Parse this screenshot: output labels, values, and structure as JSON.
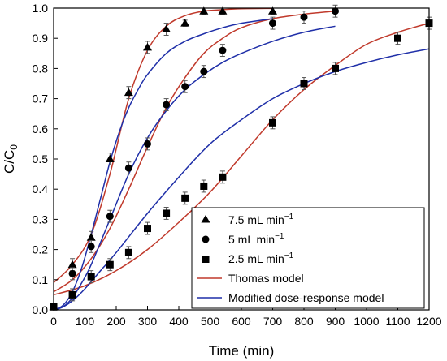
{
  "chart_data": {
    "type": "scatter",
    "title": "",
    "xlabel": "Time (min)",
    "ylabel": "C/C",
    "ylabel_subscript": "0",
    "xlim": [
      0,
      1200
    ],
    "ylim": [
      0,
      1.0
    ],
    "x_ticks": [
      0,
      100,
      200,
      300,
      400,
      500,
      600,
      700,
      800,
      900,
      1000,
      1100,
      1200
    ],
    "y_ticks": [
      0.0,
      0.1,
      0.2,
      0.3,
      0.4,
      0.5,
      0.6,
      0.7,
      0.8,
      0.9,
      1.0
    ],
    "x_tick_labels": [
      "0",
      "100",
      "200",
      "300",
      "400",
      "500",
      "600",
      "700",
      "800",
      "900",
      "1000",
      "1100",
      "1200"
    ],
    "y_tick_labels": [
      "0.0",
      "0.1",
      "0.2",
      "0.3",
      "0.4",
      "0.5",
      "0.6",
      "0.7",
      "0.8",
      "0.9",
      "1.0"
    ],
    "grid": false,
    "legend_position": "bottom-right",
    "series": [
      {
        "name": "7.5 mL min",
        "name_superscript": "−1",
        "marker": "triangle",
        "color": "#000000",
        "points": [
          {
            "x": 0,
            "y": 0.01,
            "err": 0
          },
          {
            "x": 60,
            "y": 0.15,
            "err": 0.02
          },
          {
            "x": 120,
            "y": 0.24,
            "err": 0.02
          },
          {
            "x": 180,
            "y": 0.5,
            "err": 0.02
          },
          {
            "x": 240,
            "y": 0.72,
            "err": 0.02
          },
          {
            "x": 300,
            "y": 0.87,
            "err": 0.02
          },
          {
            "x": 360,
            "y": 0.93,
            "err": 0.02
          },
          {
            "x": 420,
            "y": 0.95,
            "err": 0.01
          },
          {
            "x": 480,
            "y": 0.99,
            "err": 0.01
          },
          {
            "x": 540,
            "y": 0.99,
            "err": 0.01
          },
          {
            "x": 700,
            "y": 0.99,
            "err": 0.01
          }
        ]
      },
      {
        "name": "5 mL min",
        "name_superscript": "−1",
        "marker": "circle",
        "color": "#000000",
        "points": [
          {
            "x": 0,
            "y": 0.01,
            "err": 0
          },
          {
            "x": 60,
            "y": 0.12,
            "err": 0.02
          },
          {
            "x": 120,
            "y": 0.21,
            "err": 0.02
          },
          {
            "x": 180,
            "y": 0.31,
            "err": 0.02
          },
          {
            "x": 240,
            "y": 0.47,
            "err": 0.02
          },
          {
            "x": 300,
            "y": 0.55,
            "err": 0.02
          },
          {
            "x": 360,
            "y": 0.68,
            "err": 0.02
          },
          {
            "x": 420,
            "y": 0.74,
            "err": 0.02
          },
          {
            "x": 480,
            "y": 0.79,
            "err": 0.02
          },
          {
            "x": 540,
            "y": 0.86,
            "err": 0.02
          },
          {
            "x": 700,
            "y": 0.95,
            "err": 0.02
          },
          {
            "x": 800,
            "y": 0.97,
            "err": 0.02
          },
          {
            "x": 900,
            "y": 0.99,
            "err": 0.02
          }
        ]
      },
      {
        "name": "2.5 mL min",
        "name_superscript": "−1",
        "marker": "square",
        "color": "#000000",
        "points": [
          {
            "x": 0,
            "y": 0.01,
            "err": 0
          },
          {
            "x": 60,
            "y": 0.05,
            "err": 0.02
          },
          {
            "x": 120,
            "y": 0.11,
            "err": 0.02
          },
          {
            "x": 180,
            "y": 0.15,
            "err": 0.02
          },
          {
            "x": 240,
            "y": 0.19,
            "err": 0.02
          },
          {
            "x": 300,
            "y": 0.27,
            "err": 0.02
          },
          {
            "x": 360,
            "y": 0.32,
            "err": 0.02
          },
          {
            "x": 420,
            "y": 0.37,
            "err": 0.02
          },
          {
            "x": 480,
            "y": 0.41,
            "err": 0.02
          },
          {
            "x": 540,
            "y": 0.44,
            "err": 0.02
          },
          {
            "x": 700,
            "y": 0.62,
            "err": 0.02
          },
          {
            "x": 800,
            "y": 0.75,
            "err": 0.02
          },
          {
            "x": 900,
            "y": 0.8,
            "err": 0.02
          },
          {
            "x": 1100,
            "y": 0.9,
            "err": 0.02
          },
          {
            "x": 1200,
            "y": 0.95,
            "err": 0.02
          }
        ]
      }
    ],
    "fit_lines": [
      {
        "name": "Thomas model",
        "color": "#c0392b",
        "curves": [
          {
            "for": "7.5 mL min",
            "x": [
              0,
              60,
              120,
              180,
              240,
              300,
              360,
              420,
              480,
              540,
              600,
              700
            ],
            "y": [
              0.09,
              0.15,
              0.25,
              0.45,
              0.7,
              0.86,
              0.94,
              0.975,
              0.99,
              0.995,
              0.998,
              0.999
            ]
          },
          {
            "for": "5 mL min",
            "x": [
              0,
              60,
              120,
              180,
              240,
              300,
              360,
              420,
              480,
              540,
              600,
              700,
              800,
              900
            ],
            "y": [
              0.06,
              0.1,
              0.17,
              0.27,
              0.4,
              0.54,
              0.67,
              0.77,
              0.85,
              0.9,
              0.935,
              0.965,
              0.98,
              0.99
            ]
          },
          {
            "for": "2.5 mL min",
            "x": [
              0,
              100,
              200,
              300,
              400,
              500,
              600,
              700,
              800,
              900,
              1000,
              1100,
              1200
            ],
            "y": [
              0.05,
              0.08,
              0.13,
              0.2,
              0.29,
              0.39,
              0.51,
              0.63,
              0.73,
              0.81,
              0.88,
              0.92,
              0.95
            ]
          }
        ]
      },
      {
        "name": "Modified dose-response model",
        "color": "#1f2fa8",
        "curves": [
          {
            "for": "7.5 mL min",
            "x": [
              0,
              30,
              60,
              90,
              120,
              150,
              180,
              210,
              240,
              270,
              300,
              360,
              420,
              480,
              540,
              600,
              700
            ],
            "y": [
              0.0,
              0.015,
              0.06,
              0.14,
              0.25,
              0.37,
              0.49,
              0.59,
              0.67,
              0.73,
              0.78,
              0.85,
              0.89,
              0.915,
              0.935,
              0.95,
              0.965
            ]
          },
          {
            "for": "5 mL min",
            "x": [
              0,
              30,
              60,
              90,
              120,
              180,
              240,
              300,
              360,
              420,
              480,
              540,
              600,
              700,
              800,
              900
            ],
            "y": [
              0.0,
              0.01,
              0.04,
              0.09,
              0.15,
              0.3,
              0.45,
              0.57,
              0.66,
              0.73,
              0.78,
              0.82,
              0.85,
              0.89,
              0.92,
              0.94
            ]
          },
          {
            "for": "2.5 mL min",
            "x": [
              0,
              30,
              60,
              100,
              150,
              200,
              300,
              400,
              500,
              600,
              700,
              800,
              900,
              1000,
              1100,
              1200
            ],
            "y": [
              0.0,
              0.01,
              0.03,
              0.07,
              0.13,
              0.19,
              0.32,
              0.44,
              0.55,
              0.63,
              0.7,
              0.75,
              0.79,
              0.82,
              0.845,
              0.865
            ]
          }
        ]
      }
    ]
  }
}
